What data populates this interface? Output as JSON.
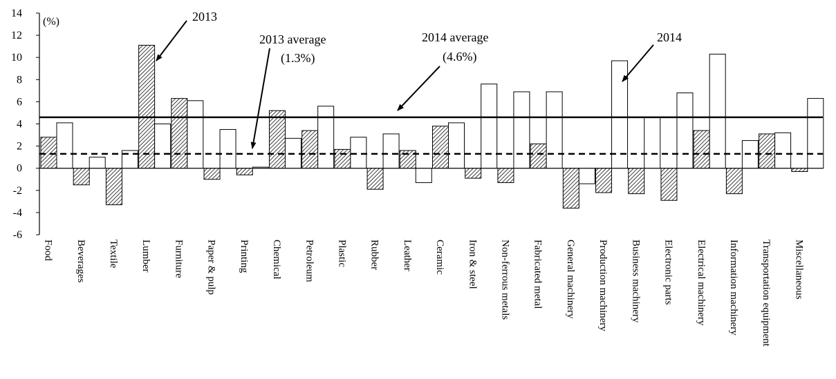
{
  "chart_data": {
    "type": "bar",
    "unit_label": "(%)",
    "ylim": [
      -6,
      14
    ],
    "yticks": [
      -6,
      -4,
      -2,
      0,
      2,
      4,
      6,
      8,
      10,
      12,
      14
    ],
    "categories": [
      "Food",
      "Beverages",
      "Textile",
      "Lumber",
      "Furniture",
      "Paper & pulp",
      "Printing",
      "Chemical",
      "Petroleum",
      "Plastic",
      "Rubber",
      "Leather",
      "Ceramic",
      "Iron & steel",
      "Non-ferrous metals",
      "Fabricated metal",
      "General machinery",
      "Production machinery",
      "Business machinery",
      "Electronic parts",
      "Electrical  machinery",
      "Information machinery",
      "Transportation equipment",
      "Miscellaneous"
    ],
    "series": [
      {
        "name": "2013",
        "style": "hatched",
        "values": [
          2.8,
          -1.5,
          -3.3,
          11.1,
          6.3,
          -1.0,
          -0.6,
          5.2,
          3.4,
          1.7,
          -1.9,
          1.6,
          3.8,
          -0.9,
          -1.3,
          2.2,
          -3.6,
          -2.2,
          -2.3,
          -2.9,
          3.4,
          -2.3,
          3.1,
          -0.3
        ]
      },
      {
        "name": "2014",
        "style": "open",
        "values": [
          4.1,
          1.0,
          1.6,
          4.0,
          6.1,
          3.5,
          0.1,
          2.7,
          5.6,
          2.8,
          3.1,
          -1.3,
          4.1,
          7.6,
          6.9,
          6.9,
          -1.4,
          9.7,
          4.6,
          6.8,
          10.3,
          2.5,
          3.2,
          6.3
        ]
      }
    ],
    "reference_lines": [
      {
        "label": "2013 average",
        "value_label": "(1.3%)",
        "value": 1.3,
        "style": "dashed"
      },
      {
        "label": "2014 average",
        "value_label": "(4.6%)",
        "value": 4.6,
        "style": "solid"
      }
    ],
    "annotations": {
      "series_2013": "2013",
      "series_2014": "2014"
    },
    "grid": false,
    "legend": "none (arrow annotations)"
  },
  "colors": {
    "bar_fill_2014": "#ffffff",
    "stroke": "#000000",
    "hatch": "#000000"
  }
}
